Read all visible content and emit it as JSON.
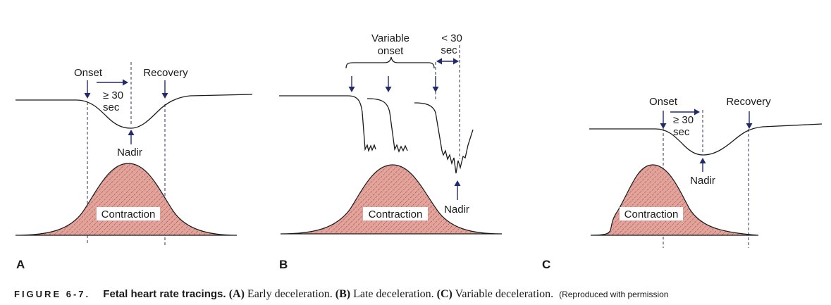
{
  "colors": {
    "contraction_fill": "#e3a39b",
    "hatch_line": "#8a4a44",
    "arrow": "#232a6b"
  },
  "panels": {
    "a": {
      "letter": "A",
      "onset": "Onset",
      "recovery": "Recovery",
      "duration_line1": "≥ 30",
      "duration_line2": "sec",
      "nadir": "Nadir",
      "contraction": "Contraction"
    },
    "b": {
      "letter": "B",
      "variable_line1": "Variable",
      "variable_line2": "onset",
      "lt30_line1": "< 30",
      "lt30_line2": "sec",
      "nadir": "Nadir",
      "contraction": "Contraction"
    },
    "c": {
      "letter": "C",
      "onset": "Onset",
      "recovery": "Recovery",
      "duration_line1": "≥ 30",
      "duration_line2": "sec",
      "nadir": "Nadir",
      "contraction": "Contraction"
    }
  },
  "caption": {
    "figure_number": "FIGURE 6-7.",
    "title": "Fetal heart rate tracings.",
    "a_label": "(A)",
    "a_text": " Early deceleration. ",
    "b_label": "(B)",
    "b_text": " Late deceleration. ",
    "c_label": "(C)",
    "c_text": " Variable deceleration. ",
    "tail": "(Reproduced with permission"
  }
}
